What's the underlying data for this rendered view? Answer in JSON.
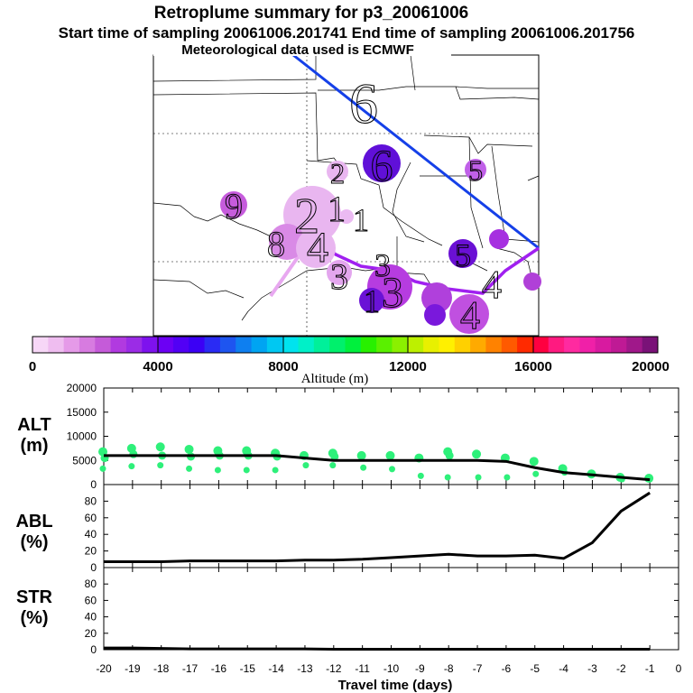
{
  "header": {
    "title": "Retroplume summary for p3_20061006",
    "sampling_line": "Start time of sampling 20061006.201741     End time of sampling 20061006.201756",
    "met_line": "Meteorological data used is ECMWF"
  },
  "map": {
    "plume_numbers": [
      "6",
      "6",
      "5",
      "2",
      "9",
      "2",
      "1",
      "1",
      "8",
      "3",
      "3",
      "3",
      "4",
      "4",
      "4",
      "1",
      "5"
    ]
  },
  "colorbar": {
    "label": "Altitude (m)",
    "ticks": [
      "0",
      "4000",
      "8000",
      "12000",
      "16000",
      "20000"
    ],
    "colors": [
      "#f7d7f7",
      "#efbdf0",
      "#e59ae8",
      "#d77be0",
      "#c55bd9",
      "#b13ae0",
      "#9b2ce6",
      "#7e12ee",
      "#6c00f4",
      "#5200f5",
      "#3b00f5",
      "#2a2bf4",
      "#1e55f0",
      "#0e7ff0",
      "#00a4f2",
      "#00c8f2",
      "#00e3ee",
      "#00f0c8",
      "#00f09a",
      "#00f06c",
      "#00f03d",
      "#28f000",
      "#5af000",
      "#8bf000",
      "#bdf000",
      "#e8f000",
      "#fff000",
      "#ffd000",
      "#ffaa00",
      "#ff8200",
      "#ff5a00",
      "#ff2a00",
      "#ff0040",
      "#ff1a80",
      "#ff2aa0",
      "#f020a8",
      "#d81aa0",
      "#bf1a95",
      "#a0188a",
      "#7a1278"
    ]
  },
  "panels": {
    "alt": {
      "label_line1": "ALT",
      "label_line2": "(m)"
    },
    "abl": {
      "label_line1": "ABL",
      "label_line2": "(%)"
    },
    "str": {
      "label_line1": "STR",
      "label_line2": "(%)"
    },
    "xlabel": "Travel time (days)"
  },
  "chart_data": [
    {
      "type": "line",
      "name": "ALT",
      "x": [
        -20,
        -19,
        -18,
        -17,
        -16,
        -15,
        -14,
        -13,
        -12,
        -11,
        -10,
        -9,
        -8,
        -7,
        -6,
        -5,
        -4,
        -3,
        -2,
        -1
      ],
      "values": [
        6000,
        6000,
        6000,
        6000,
        6000,
        6000,
        6000,
        5500,
        5000,
        5000,
        5000,
        5000,
        5000,
        5000,
        4800,
        3500,
        2500,
        2000,
        1500,
        1000
      ],
      "scatter_clusters": [
        {
          "x": -20,
          "y": [
            6800,
            5500,
            3300
          ]
        },
        {
          "x": -19,
          "y": [
            7500,
            6300,
            3800
          ]
        },
        {
          "x": -18,
          "y": [
            7800,
            6000,
            4000
          ]
        },
        {
          "x": -17,
          "y": [
            7300,
            5800,
            3300
          ]
        },
        {
          "x": -16,
          "y": [
            7000,
            6000,
            3000
          ]
        },
        {
          "x": -15,
          "y": [
            7000,
            6000,
            3000
          ]
        },
        {
          "x": -14,
          "y": [
            6500,
            5800,
            3000
          ]
        },
        {
          "x": -13,
          "y": [
            6000,
            4000
          ]
        },
        {
          "x": -12,
          "y": [
            6500,
            5800,
            4000
          ]
        },
        {
          "x": -11,
          "y": [
            6000,
            3500
          ]
        },
        {
          "x": -10,
          "y": [
            6000,
            3200
          ]
        },
        {
          "x": -9,
          "y": [
            5500,
            1800
          ]
        },
        {
          "x": -8,
          "y": [
            6800,
            6000,
            1500
          ]
        },
        {
          "x": -7,
          "y": [
            6300,
            1500
          ]
        },
        {
          "x": -6,
          "y": [
            5500,
            1500
          ]
        },
        {
          "x": -5,
          "y": [
            4800,
            2200
          ]
        },
        {
          "x": -4,
          "y": [
            3300,
            2500
          ]
        },
        {
          "x": -3,
          "y": [
            2200
          ]
        },
        {
          "x": -2,
          "y": [
            1500,
            1100
          ]
        },
        {
          "x": -1,
          "y": [
            1300
          ]
        }
      ],
      "ylim": [
        0,
        20000
      ],
      "yticks": [
        0,
        5000,
        10000,
        15000,
        20000
      ],
      "xlim": [
        -20,
        0
      ]
    },
    {
      "type": "line",
      "name": "ABL",
      "x": [
        -20,
        -19,
        -18,
        -17,
        -16,
        -15,
        -14,
        -13,
        -12,
        -11,
        -10,
        -9,
        -8,
        -7,
        -6,
        -5,
        -4,
        -3,
        -2,
        -1
      ],
      "values": [
        7,
        7,
        7,
        8,
        8,
        8,
        8,
        9,
        9,
        10,
        12,
        14,
        16,
        14,
        14,
        15,
        11,
        30,
        68,
        90
      ],
      "ylim": [
        0,
        100
      ],
      "yticks": [
        0,
        20,
        40,
        60,
        80
      ],
      "xlim": [
        -20,
        0
      ]
    },
    {
      "type": "line",
      "name": "STR",
      "x": [
        -20,
        -19,
        -18,
        -17,
        -16,
        -15,
        -14,
        -13,
        -12,
        -11,
        -10,
        -9,
        -8,
        -7,
        -6,
        -5,
        -4,
        -3,
        -2,
        -1
      ],
      "values": [
        2,
        2,
        1.5,
        1,
        1,
        1,
        1,
        1,
        0.5,
        0.5,
        0.5,
        0.5,
        0.5,
        0.5,
        0.5,
        0.5,
        0.5,
        0.5,
        0.5,
        0.5
      ],
      "ylim": [
        0,
        100
      ],
      "yticks": [
        0,
        20,
        40,
        60,
        80
      ],
      "xlim": [
        -20,
        0
      ],
      "xticks": [
        -20,
        -19,
        -18,
        -17,
        -16,
        -15,
        -14,
        -13,
        -12,
        -11,
        -10,
        -9,
        -8,
        -7,
        -6,
        -5,
        -4,
        -3,
        -2,
        -1,
        0
      ],
      "xticklabels": [
        "-20",
        "-19",
        "-18",
        "-17",
        "-16",
        "-15",
        "-14",
        "-13",
        "-12",
        "-11",
        "-10",
        "-9",
        "-8",
        "-7",
        "-6",
        "-5",
        "-4",
        "-3",
        "-2",
        "-1",
        "0"
      ]
    }
  ]
}
